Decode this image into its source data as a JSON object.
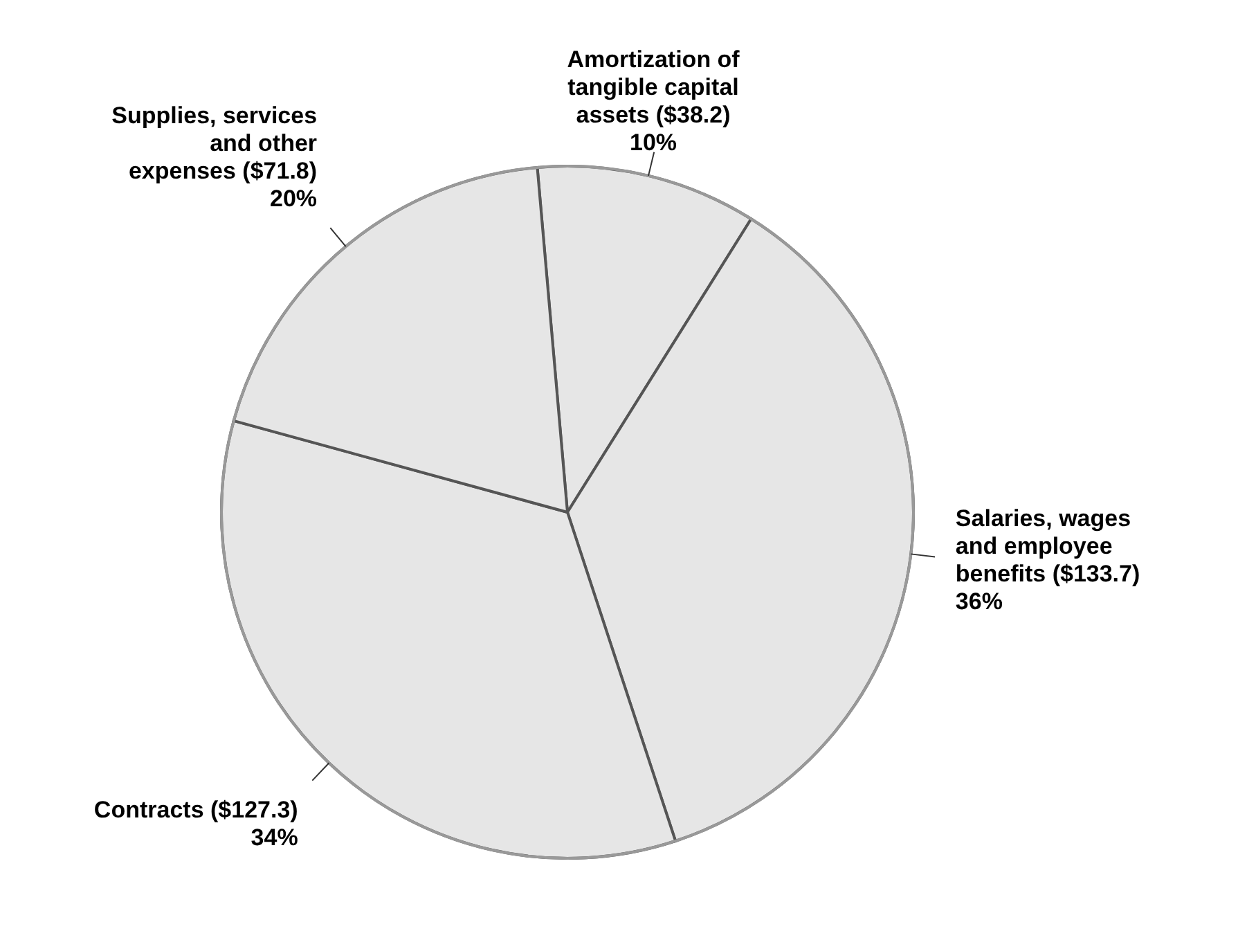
{
  "chart_data": {
    "type": "pie",
    "categories": [
      "Amortization of tangible capital assets",
      "Salaries, wages and employee benefits",
      "Contracts",
      "Supplies, services and other expenses"
    ],
    "values": [
      38.2,
      133.7,
      127.3,
      71.8
    ],
    "value_labels": [
      "($38.2)\n10%",
      "($133.7)\n36%",
      "($127.3)\n34%",
      "($71.8)\n20%"
    ],
    "colors": [
      "#e6e6e6",
      "#e6e6e6",
      "#e6e6e6",
      "#e6e6e6"
    ]
  }
}
